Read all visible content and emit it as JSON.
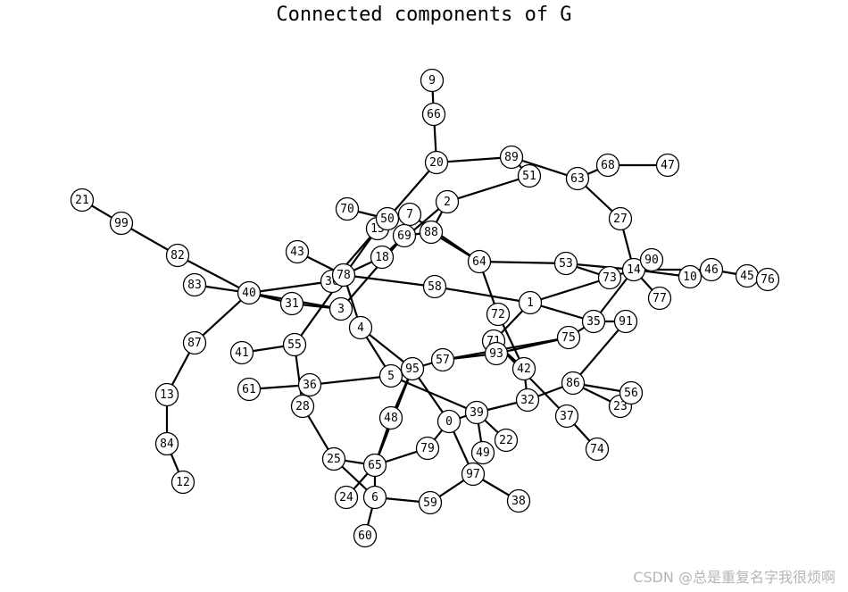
{
  "title": "Connected components of G",
  "watermark": "CSDN @总是重复名字我很烦啊",
  "graph": {
    "nodes": [
      "0",
      "1",
      "2",
      "3",
      "4",
      "5",
      "6",
      "7",
      "9",
      "10",
      "12",
      "13",
      "14",
      "15",
      "18",
      "20",
      "21",
      "22",
      "23",
      "24",
      "25",
      "27",
      "28",
      "30",
      "31",
      "32",
      "35",
      "36",
      "37",
      "38",
      "39",
      "40",
      "41",
      "42",
      "43",
      "45",
      "46",
      "47",
      "48",
      "49",
      "50",
      "51",
      "53",
      "55",
      "56",
      "57",
      "58",
      "59",
      "60",
      "61",
      "63",
      "64",
      "65",
      "66",
      "68",
      "69",
      "70",
      "71",
      "72",
      "73",
      "74",
      "75",
      "76",
      "77",
      "78",
      "79",
      "82",
      "83",
      "84",
      "86",
      "87",
      "88",
      "89",
      "90",
      "91",
      "93",
      "95",
      "97",
      "99"
    ],
    "edges": [
      [
        "9",
        "66"
      ],
      [
        "66",
        "20"
      ],
      [
        "20",
        "89"
      ],
      [
        "20",
        "50"
      ],
      [
        "89",
        "51"
      ],
      [
        "89",
        "63"
      ],
      [
        "51",
        "2"
      ],
      [
        "63",
        "68"
      ],
      [
        "68",
        "47"
      ],
      [
        "63",
        "27"
      ],
      [
        "27",
        "14"
      ],
      [
        "14",
        "90"
      ],
      [
        "14",
        "10"
      ],
      [
        "14",
        "46"
      ],
      [
        "14",
        "77"
      ],
      [
        "14",
        "35"
      ],
      [
        "14",
        "53"
      ],
      [
        "10",
        "46"
      ],
      [
        "46",
        "45"
      ],
      [
        "45",
        "76"
      ],
      [
        "2",
        "88"
      ],
      [
        "2",
        "18"
      ],
      [
        "7",
        "50"
      ],
      [
        "7",
        "69"
      ],
      [
        "7",
        "64"
      ],
      [
        "50",
        "15"
      ],
      [
        "50",
        "70"
      ],
      [
        "88",
        "69"
      ],
      [
        "88",
        "64"
      ],
      [
        "69",
        "18"
      ],
      [
        "15",
        "30"
      ],
      [
        "15",
        "55"
      ],
      [
        "18",
        "78"
      ],
      [
        "64",
        "53"
      ],
      [
        "64",
        "72"
      ],
      [
        "53",
        "73"
      ],
      [
        "73",
        "14"
      ],
      [
        "73",
        "1"
      ],
      [
        "1",
        "58"
      ],
      [
        "1",
        "35"
      ],
      [
        "1",
        "71"
      ],
      [
        "58",
        "78"
      ],
      [
        "78",
        "30"
      ],
      [
        "78",
        "4"
      ],
      [
        "78",
        "43"
      ],
      [
        "30",
        "40"
      ],
      [
        "3",
        "40"
      ],
      [
        "31",
        "40"
      ],
      [
        "3",
        "31"
      ],
      [
        "40",
        "82"
      ],
      [
        "40",
        "83"
      ],
      [
        "40",
        "87"
      ],
      [
        "82",
        "99"
      ],
      [
        "99",
        "21"
      ],
      [
        "87",
        "13"
      ],
      [
        "13",
        "84"
      ],
      [
        "84",
        "12"
      ],
      [
        "55",
        "41"
      ],
      [
        "55",
        "28"
      ],
      [
        "36",
        "61"
      ],
      [
        "36",
        "5"
      ],
      [
        "5",
        "4"
      ],
      [
        "5",
        "39"
      ],
      [
        "4",
        "95"
      ],
      [
        "95",
        "57"
      ],
      [
        "95",
        "0"
      ],
      [
        "95",
        "48"
      ],
      [
        "95",
        "65"
      ],
      [
        "57",
        "75"
      ],
      [
        "57",
        "93"
      ],
      [
        "93",
        "71"
      ],
      [
        "93",
        "75"
      ],
      [
        "75",
        "35"
      ],
      [
        "35",
        "91"
      ],
      [
        "91",
        "86"
      ],
      [
        "71",
        "42"
      ],
      [
        "71",
        "37"
      ],
      [
        "42",
        "32"
      ],
      [
        "42",
        "72"
      ],
      [
        "32",
        "39"
      ],
      [
        "32",
        "86"
      ],
      [
        "86",
        "56"
      ],
      [
        "86",
        "23"
      ],
      [
        "56",
        "23"
      ],
      [
        "37",
        "74"
      ],
      [
        "39",
        "22"
      ],
      [
        "39",
        "49"
      ],
      [
        "39",
        "0"
      ],
      [
        "0",
        "79"
      ],
      [
        "0",
        "97"
      ],
      [
        "97",
        "59"
      ],
      [
        "97",
        "38"
      ],
      [
        "79",
        "65"
      ],
      [
        "65",
        "25"
      ],
      [
        "65",
        "24"
      ],
      [
        "65",
        "6"
      ],
      [
        "48",
        "65"
      ],
      [
        "28",
        "25"
      ],
      [
        "25",
        "6"
      ],
      [
        "6",
        "59"
      ],
      [
        "6",
        "60"
      ],
      [
        "3",
        "69"
      ]
    ]
  }
}
